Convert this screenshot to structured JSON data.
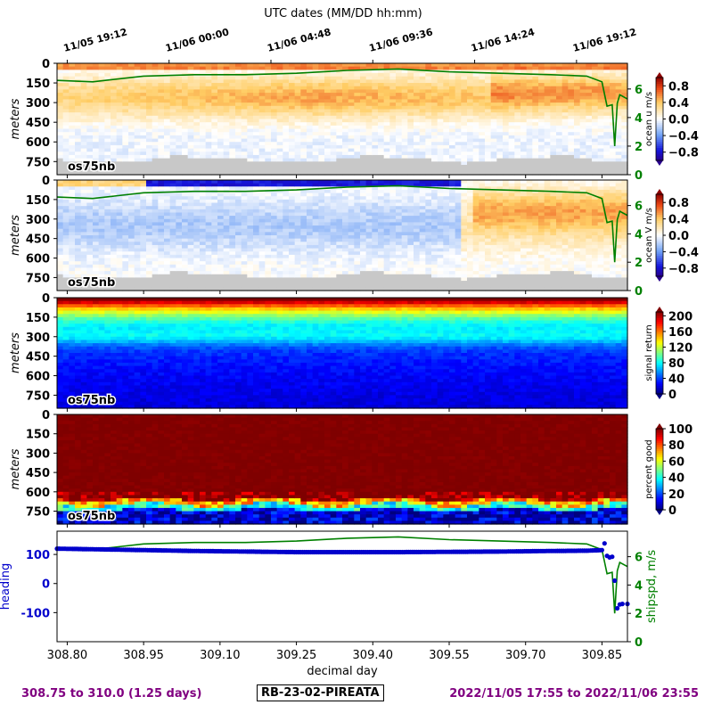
{
  "top_axis": {
    "title": "UTC dates (MM/DD hh:mm)",
    "ticks": [
      {
        "label": "11/05 19:12",
        "x": 308.8
      },
      {
        "label": "11/06 00:00",
        "x": 309.0
      },
      {
        "label": "11/06 04:48",
        "x": 309.2
      },
      {
        "label": "11/06 09:36",
        "x": 309.4
      },
      {
        "label": "11/06 14:24",
        "x": 309.6
      },
      {
        "label": "11/06 19:12",
        "x": 309.8
      }
    ]
  },
  "footer": {
    "range": "308.75 to 310.0 (1.25 days)",
    "cruise": "RB-23-02-PIREATA",
    "dates": "2022/11/05 17:55 to 2022/11/06 23:55"
  },
  "colors": {
    "ship_speed": "#008000",
    "heading": "#0000cc",
    "footer_text": "#800080",
    "no_data": "#c8c8c8"
  },
  "chart_data": [
    {
      "type": "heatmap",
      "ylabel": "meters",
      "yticks": [
        0,
        150,
        300,
        450,
        600,
        750
      ],
      "yrange": [
        0,
        850
      ],
      "xrange": [
        308.78,
        309.9
      ],
      "colormap": "diverging-bwr",
      "panel_label": "os75nb",
      "colorbar_label": "ocean u m/s",
      "colorbar_ticks": [
        "0.8",
        "0.4",
        "0.0",
        "−0.4",
        "−0.8"
      ],
      "clim": [
        -1.0,
        1.0
      ],
      "right_axis_ticks": [
        "6",
        "4",
        "2",
        "0"
      ],
      "right_axis_range": [
        0,
        7.8
      ]
    },
    {
      "type": "heatmap",
      "ylabel": "meters",
      "yticks": [
        0,
        150,
        300,
        450,
        600,
        750
      ],
      "yrange": [
        0,
        850
      ],
      "xrange": [
        308.78,
        309.9
      ],
      "colormap": "diverging-bwr",
      "panel_label": "os75nb",
      "colorbar_label": "ocean V m/s",
      "colorbar_ticks": [
        "0.8",
        "0.4",
        "0.0",
        "−0.4",
        "−0.8"
      ],
      "clim": [
        -1.0,
        1.0
      ],
      "right_axis_ticks": [
        "6",
        "4",
        "2",
        "0"
      ],
      "right_axis_range": [
        0,
        7.8
      ]
    },
    {
      "type": "heatmap",
      "ylabel": "meters",
      "yticks": [
        0,
        150,
        300,
        450,
        600,
        750
      ],
      "yrange": [
        0,
        850
      ],
      "xrange": [
        308.78,
        309.9
      ],
      "colormap": "jet",
      "panel_label": "os75nb",
      "colorbar_label": "signal return",
      "colorbar_ticks": [
        "200",
        "160",
        "120",
        "80",
        "40",
        "0"
      ],
      "clim": [
        0,
        210
      ]
    },
    {
      "type": "heatmap",
      "ylabel": "meters",
      "yticks": [
        0,
        150,
        300,
        450,
        600,
        750
      ],
      "yrange": [
        0,
        850
      ],
      "xrange": [
        308.78,
        309.9
      ],
      "colormap": "jet",
      "panel_label": "os75nb",
      "colorbar_label": "percent good",
      "colorbar_ticks": [
        "100",
        "80",
        "60",
        "40",
        "20",
        "0"
      ],
      "clim": [
        0,
        100
      ]
    },
    {
      "type": "scatter",
      "xlabel": "decimal day",
      "xticks": [
        "308.80",
        "308.95",
        "309.10",
        "309.25",
        "309.40",
        "309.55",
        "309.70",
        "309.85"
      ],
      "xrange": [
        308.78,
        309.9
      ],
      "ylabel": "heading",
      "yticks": [
        100,
        0,
        -100
      ],
      "yrange": [
        -200,
        180
      ],
      "y2label": "shipspd, m/s",
      "y2ticks": [
        "6",
        "4",
        "2",
        "0"
      ],
      "y2range": [
        0,
        7.8
      ],
      "series": [
        {
          "name": "heading",
          "axis": "left",
          "x": [
            308.78,
            308.85,
            308.95,
            309.05,
            309.15,
            309.25,
            309.35,
            309.45,
            309.55,
            309.65,
            309.75,
            309.82,
            309.85,
            309.855,
            309.86,
            309.865,
            309.87,
            309.875,
            309.88,
            309.885,
            309.89,
            309.9
          ],
          "y": [
            120,
            118,
            115,
            112,
            110,
            108,
            108,
            108,
            109,
            110,
            112,
            113,
            115,
            138,
            95,
            90,
            92,
            10,
            -85,
            -72,
            -70,
            -70
          ]
        },
        {
          "name": "shipspd",
          "axis": "right",
          "x": [
            308.78,
            308.85,
            308.95,
            309.05,
            309.15,
            309.25,
            309.35,
            309.45,
            309.55,
            309.65,
            309.75,
            309.82,
            309.85,
            309.86,
            309.87,
            309.875,
            309.88,
            309.885,
            309.9
          ],
          "y": [
            6.6,
            6.5,
            6.9,
            7.0,
            7.0,
            7.1,
            7.3,
            7.4,
            7.2,
            7.1,
            7.0,
            6.9,
            6.5,
            4.8,
            4.9,
            2.0,
            5.0,
            5.6,
            5.3
          ]
        }
      ]
    }
  ]
}
